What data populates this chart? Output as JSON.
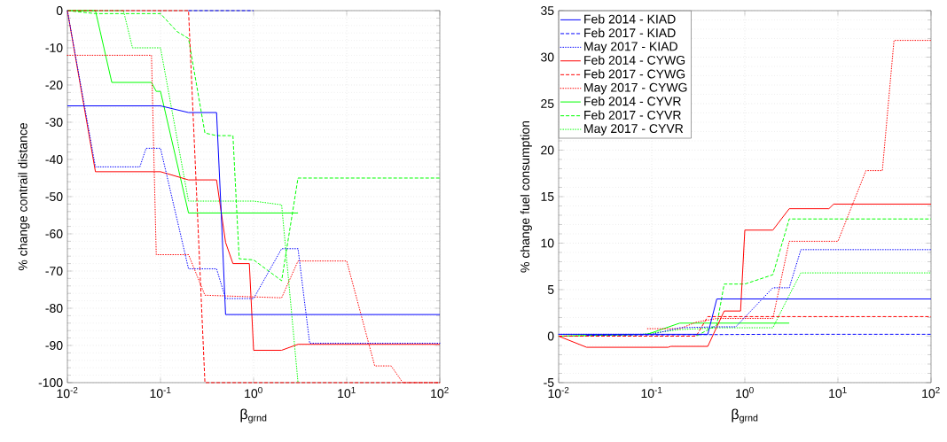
{
  "chart_data": [
    {
      "type": "line",
      "xlabel": "β$_{grnd}$",
      "ylabel": "% change contrail distance",
      "log": "x",
      "grid": true,
      "legend": false,
      "marker": "none",
      "xlim": [
        0.01,
        100
      ],
      "ylim": [
        -100,
        0
      ],
      "xticks": [
        {
          "value": 0.01,
          "label": "10$^{-2}$"
        },
        {
          "value": 0.1,
          "label": "10$^{-1}$"
        },
        {
          "value": 1,
          "label": "10$^{0}$"
        },
        {
          "value": 10,
          "label": "10$^{1}$"
        },
        {
          "value": 100,
          "label": "10$^{2}$"
        }
      ],
      "yticks": [
        -100,
        -90,
        -80,
        -70,
        -60,
        -50,
        -40,
        -30,
        -20,
        -10,
        0
      ],
      "series": [
        {
          "color": "#0000ff",
          "line_style": "solid",
          "x": [
            0.01,
            0.1,
            0.2,
            0.4,
            0.45,
            0.5,
            100
          ],
          "values": [
            -25.6,
            -25.6,
            -27.4,
            -27.4,
            -55,
            -81.7,
            -81.7
          ]
        },
        {
          "color": "#0000ff",
          "line_style": "dashed",
          "x": [
            0.2,
            1
          ],
          "values": [
            0,
            0
          ]
        },
        {
          "color": "#0000ff",
          "line_style": "dotted",
          "x": [
            0.01,
            0.02,
            0.06,
            0.07,
            0.1,
            0.2,
            0.4,
            0.5,
            1,
            2,
            3,
            4,
            100
          ],
          "values": [
            0,
            -42,
            -42,
            -37,
            -37,
            -69.4,
            -69.4,
            -77.4,
            -77.4,
            -64,
            -64,
            -89.4,
            -89.4
          ]
        },
        {
          "color": "#ff0000",
          "line_style": "solid",
          "x": [
            0.01,
            0.02,
            0.1,
            0.2,
            0.4,
            0.5,
            0.6,
            0.9,
            1,
            2,
            3,
            100
          ],
          "values": [
            0,
            -43.3,
            -43.3,
            -45.5,
            -45.5,
            -62.3,
            -68,
            -68,
            -91.3,
            -91.3,
            -89.7,
            -89.7
          ]
        },
        {
          "color": "#ff0000",
          "line_style": "dashed",
          "x": [
            0.01,
            0.2,
            0.3,
            100
          ],
          "values": [
            0,
            0,
            -100,
            -100
          ]
        },
        {
          "color": "#ff0000",
          "line_style": "dotted",
          "x": [
            0.01,
            0.08,
            0.09,
            0.2,
            0.3,
            2,
            3,
            10,
            20,
            30,
            40,
            100
          ],
          "values": [
            -12,
            -12,
            -65.6,
            -65.6,
            -76.5,
            -77.2,
            -67.3,
            -67.3,
            -95.5,
            -95.5,
            -100,
            -100
          ]
        },
        {
          "color": "#00ff00",
          "line_style": "solid",
          "x": [
            0.01,
            0.02,
            0.03,
            0.08,
            0.09,
            0.1,
            0.2,
            3
          ],
          "values": [
            0,
            0,
            -19.3,
            -19.3,
            -21.7,
            -21.7,
            -54.4,
            -54.4
          ]
        },
        {
          "color": "#00ff00",
          "line_style": "dashed",
          "x": [
            0.01,
            0.02,
            0.1,
            0.15,
            0.2,
            0.3,
            0.4,
            0.6,
            0.7,
            1,
            2,
            3,
            100
          ],
          "values": [
            0,
            -0.8,
            -0.8,
            -5.6,
            -7.5,
            -32.9,
            -33.6,
            -33.6,
            -66.7,
            -67,
            -72.6,
            -45,
            -45
          ]
        },
        {
          "color": "#00ff00",
          "line_style": "dotted",
          "x": [
            0.01,
            0.04,
            0.05,
            0.1,
            0.2,
            1,
            2,
            3
          ],
          "values": [
            0,
            0,
            -10,
            -10,
            -51.2,
            -51.2,
            -52.2,
            -100
          ]
        }
      ]
    },
    {
      "type": "line",
      "xlabel": "β$_{grnd}$",
      "ylabel": "% change fuel consumption",
      "log": "x",
      "grid": true,
      "legend": "top left",
      "marker": "none",
      "xlim": [
        0.01,
        100
      ],
      "ylim": [
        -5,
        35
      ],
      "xticks": [
        {
          "value": 0.01,
          "label": "10$^{-2}$"
        },
        {
          "value": 0.1,
          "label": "10$^{-1}$"
        },
        {
          "value": 1,
          "label": "10$^{0}$"
        },
        {
          "value": 10,
          "label": "10$^{1}$"
        },
        {
          "value": 100,
          "label": "10$^{2}$"
        }
      ],
      "yticks": [
        -5,
        0,
        5,
        10,
        15,
        20,
        25,
        30,
        35
      ],
      "series": [
        {
          "name": "Feb 2014 - KIAD",
          "color": "#0000ff",
          "line_style": "solid",
          "x": [
            0.01,
            0.4,
            0.5,
            100
          ],
          "values": [
            0.2,
            0.2,
            4.0,
            4.0
          ]
        },
        {
          "name": "Feb 2017 - KIAD",
          "color": "#0000ff",
          "line_style": "dashed",
          "x": [
            0.02,
            2,
            100
          ],
          "values": [
            0.1,
            0.2,
            0.2
          ]
        },
        {
          "name": "May 2017 - KIAD",
          "color": "#0000ff",
          "line_style": "dotted",
          "x": [
            0.01,
            0.1,
            0.2,
            0.5,
            0.8,
            2,
            3,
            4,
            100
          ],
          "values": [
            0.2,
            0.2,
            0.9,
            1.0,
            1.0,
            5.2,
            5.2,
            9.3,
            9.3
          ]
        },
        {
          "name": "Feb 2014 - CYWG",
          "color": "#ff0000",
          "line_style": "solid",
          "x": [
            0.01,
            0.02,
            0.15,
            0.16,
            0.4,
            0.6,
            0.9,
            1,
            2,
            3,
            8,
            9,
            100
          ],
          "values": [
            0,
            -1.2,
            -1.2,
            -1.1,
            -1.1,
            2.7,
            2.7,
            11.4,
            11.4,
            13.7,
            13.7,
            14.2,
            14.2
          ]
        },
        {
          "name": "Feb 2017 - CYWG",
          "color": "#ff0000",
          "line_style": "dashed",
          "x": [
            0.01,
            0.3,
            0.4,
            100
          ],
          "values": [
            0,
            0,
            2.1,
            2.1
          ]
        },
        {
          "name": "May 2017 - CYWG",
          "color": "#ff0000",
          "line_style": "dotted",
          "x": [
            0.09,
            0.2,
            0.3,
            0.5,
            2,
            3,
            10,
            20,
            30,
            40,
            100
          ],
          "values": [
            0.8,
            0.8,
            1.5,
            1.9,
            1.9,
            10.2,
            10.2,
            17.8,
            17.8,
            31.8,
            31.8
          ]
        },
        {
          "name": "Feb 2014 - CYVR",
          "color": "#00ff00",
          "line_style": "solid",
          "x": [
            0.01,
            0.09,
            0.2,
            3
          ],
          "values": [
            0,
            0.2,
            1.4,
            1.4
          ]
        },
        {
          "name": "Feb 2017 - CYVR",
          "color": "#00ff00",
          "line_style": "dashed",
          "x": [
            0.01,
            0.3,
            0.5,
            0.6,
            1,
            2,
            3,
            100
          ],
          "values": [
            0,
            0,
            1.2,
            5.6,
            5.6,
            6.6,
            12.6,
            12.6
          ]
        },
        {
          "name": "May 2017 - CYVR",
          "color": "#00ff00",
          "line_style": "dotted",
          "x": [
            0.01,
            0.08,
            0.2,
            0.5,
            2,
            3,
            4,
            100
          ],
          "values": [
            0,
            0.2,
            0.7,
            0.9,
            0.9,
            4.4,
            6.8,
            6.8
          ]
        }
      ]
    }
  ]
}
